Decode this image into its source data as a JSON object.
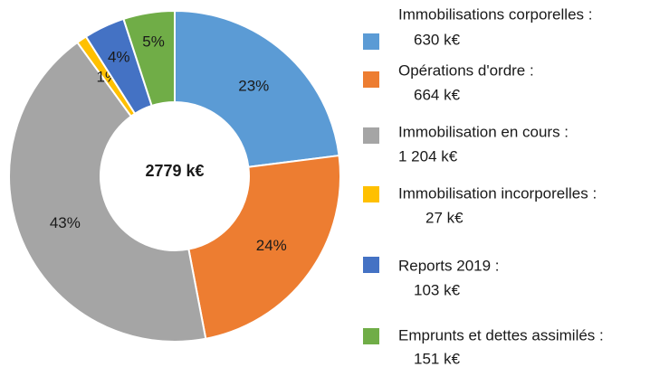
{
  "chart_data": {
    "type": "donut",
    "center_label": "2779 k€",
    "categories": [
      "Immobilisations corporelles :",
      "Opérations d'ordre :",
      "Immobilisation en cours :",
      "Immobilisation incorporelles :",
      "Reports 2019 :",
      "Emprunts et dettes assimilés :"
    ],
    "amounts": [
      "630 k€",
      "664 k€",
      "1 204 k€",
      "27 k€",
      "103 k€",
      "151 k€"
    ],
    "values": [
      23,
      24,
      43,
      1,
      4,
      5
    ],
    "value_labels": [
      "23%",
      "24%",
      "43%",
      "1%",
      "4%",
      "5%"
    ],
    "colors": [
      "#5b9bd5",
      "#ed7d31",
      "#a5a5a5",
      "#ffc000",
      "#4472c4",
      "#70ad47"
    ]
  }
}
